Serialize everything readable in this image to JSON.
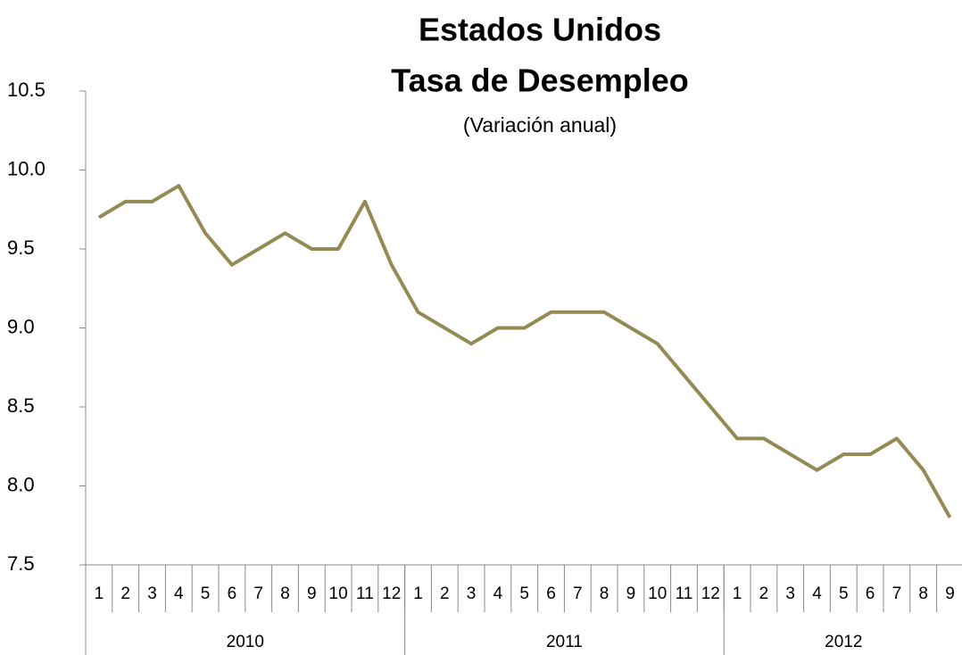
{
  "chart_data": {
    "type": "line",
    "title": "Estados Unidos",
    "subtitle_main": "Tasa de Desempleo",
    "subtitle": "(Variación anual)",
    "categories": [
      "1",
      "2",
      "3",
      "4",
      "5",
      "6",
      "7",
      "8",
      "9",
      "10",
      "11",
      "12",
      "1",
      "2",
      "3",
      "4",
      "5",
      "6",
      "7",
      "8",
      "9",
      "10",
      "11",
      "12",
      "1",
      "2",
      "3",
      "4",
      "5",
      "6",
      "7",
      "8",
      "9"
    ],
    "groups": [
      {
        "label": "2010",
        "span": 12
      },
      {
        "label": "2011",
        "span": 12
      },
      {
        "label": "2012",
        "span": 9
      }
    ],
    "series": [
      {
        "name": "Tasa de Desempleo",
        "color": "#948a54",
        "values": [
          9.7,
          9.8,
          9.8,
          9.9,
          9.6,
          9.4,
          9.5,
          9.6,
          9.5,
          9.5,
          9.8,
          9.4,
          9.1,
          9.0,
          8.9,
          9.0,
          9.0,
          9.1,
          9.1,
          9.1,
          9.0,
          8.9,
          8.7,
          8.5,
          8.3,
          8.3,
          8.2,
          8.1,
          8.2,
          8.2,
          8.3,
          8.1,
          7.8
        ]
      }
    ],
    "ylim": [
      7.5,
      10.5
    ],
    "yticks": [
      {
        "value": 7.5,
        "label": "7.5"
      },
      {
        "value": 8,
        "label": "8.0"
      },
      {
        "value": 8.5,
        "label": "8.5"
      },
      {
        "value": 9,
        "label": "9.0"
      },
      {
        "value": 9.5,
        "label": "9.5"
      },
      {
        "value": 10,
        "label": "10.0"
      },
      {
        "value": 10.5,
        "label": "10.5"
      }
    ],
    "grid": false
  }
}
